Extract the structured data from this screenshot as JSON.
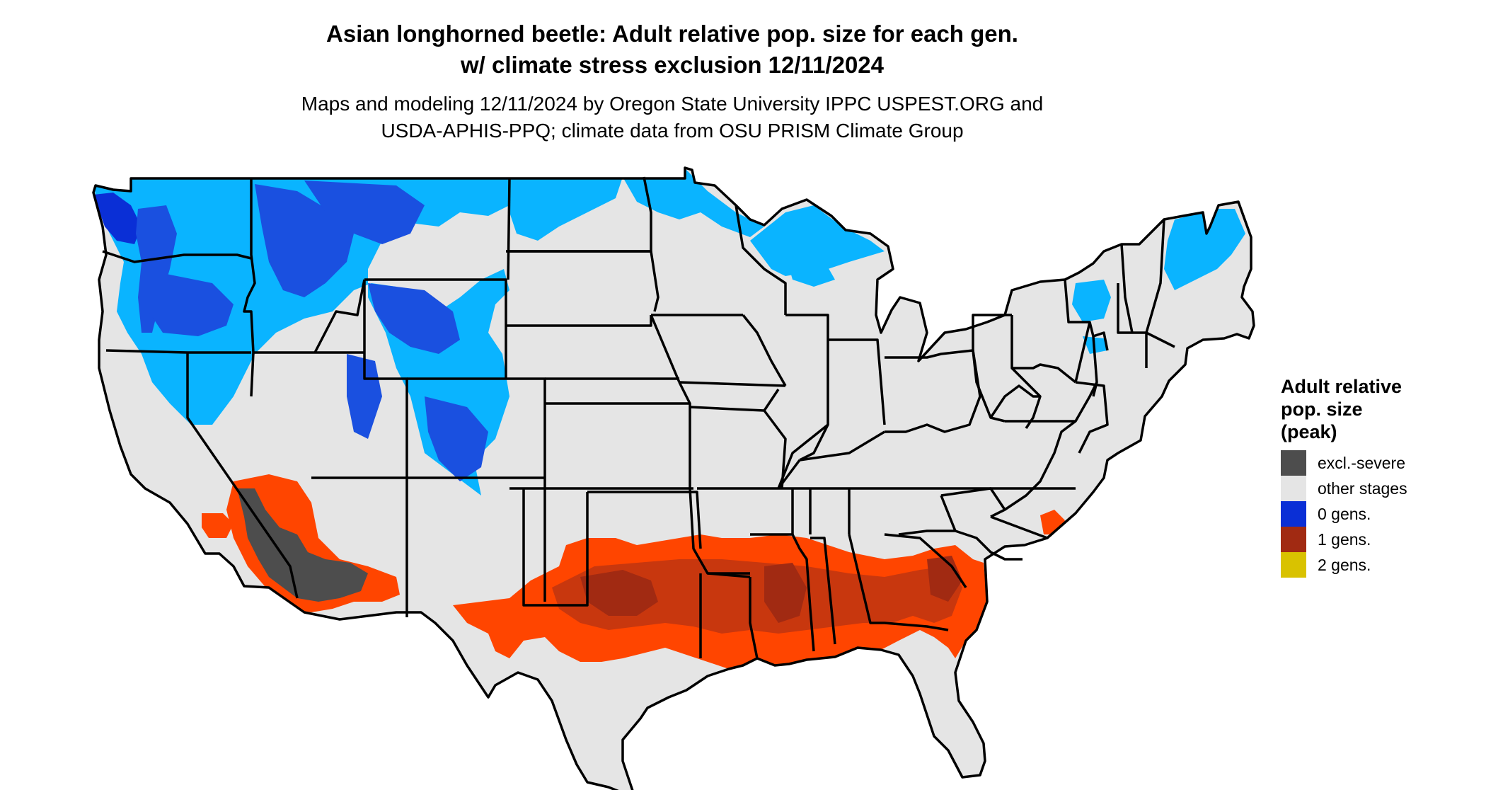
{
  "title": {
    "line1": "Asian longhorned beetle: Adult relative pop. size for each gen.",
    "line2": "w/ climate stress exclusion 12/11/2024"
  },
  "subtitle": {
    "line1": "Maps and modeling 12/11/2024 by Oregon State University IPPC USPEST.ORG and",
    "line2": "USDA-APHIS-PPQ; climate data from OSU PRISM Climate Group"
  },
  "legend": {
    "title_lines": [
      "Adult relative",
      "pop. size",
      "(peak)"
    ],
    "items": [
      {
        "label": "excl.-severe",
        "color": "#4d4d4d"
      },
      {
        "label": "other stages",
        "color": "#e5e5e5"
      },
      {
        "label": "0 gens.",
        "color": "#0a2fd6"
      },
      {
        "label": "1 gens.",
        "color": "#a12a12"
      },
      {
        "label": "2 gens.",
        "color": "#d9c200"
      }
    ]
  },
  "colors": {
    "land": "#e5e5e5",
    "border": "#000000",
    "light_blue": "#0ab4ff",
    "mid_blue": "#1a78e8",
    "dark_blue": "#0a2fd6",
    "orange": "#ff4500",
    "dark_red": "#a12a12",
    "excluded": "#4d4d4d"
  }
}
